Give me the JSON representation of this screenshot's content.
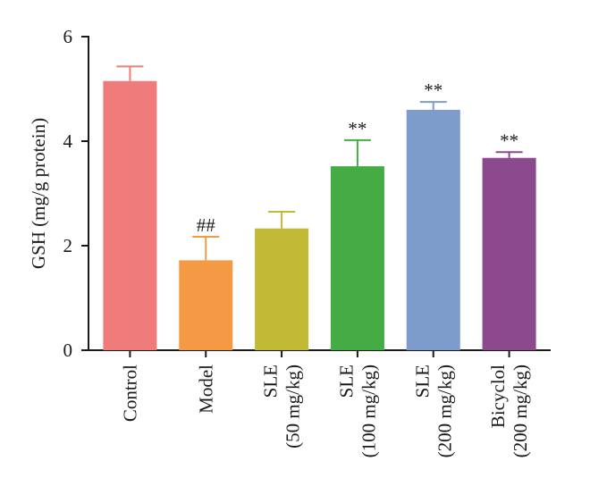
{
  "chart_data": {
    "type": "bar",
    "ylabel": "GSH (mg/g protein)",
    "ylim": [
      0,
      6
    ],
    "yticks": [
      "0",
      "2",
      "4",
      "6"
    ],
    "categories": [
      [
        "Control"
      ],
      [
        "Model"
      ],
      [
        "SLE",
        "(50 mg/kg)"
      ],
      [
        "SLE",
        "(100 mg/kg)"
      ],
      [
        "SLE",
        "(200 mg/kg)"
      ],
      [
        "Bicyclol",
        "(200 mg/kg)"
      ]
    ],
    "values": [
      5.15,
      1.72,
      2.33,
      3.52,
      4.6,
      3.68
    ],
    "errors": [
      0.28,
      0.45,
      0.32,
      0.5,
      0.15,
      0.11
    ],
    "annotations": [
      "",
      "##",
      "",
      "**",
      "**",
      "**"
    ],
    "colors": [
      "#f07b7b",
      "#f49a45",
      "#c2b935",
      "#45ab45",
      "#7d9ccb",
      "#8b4a8d"
    ],
    "grid": false
  }
}
